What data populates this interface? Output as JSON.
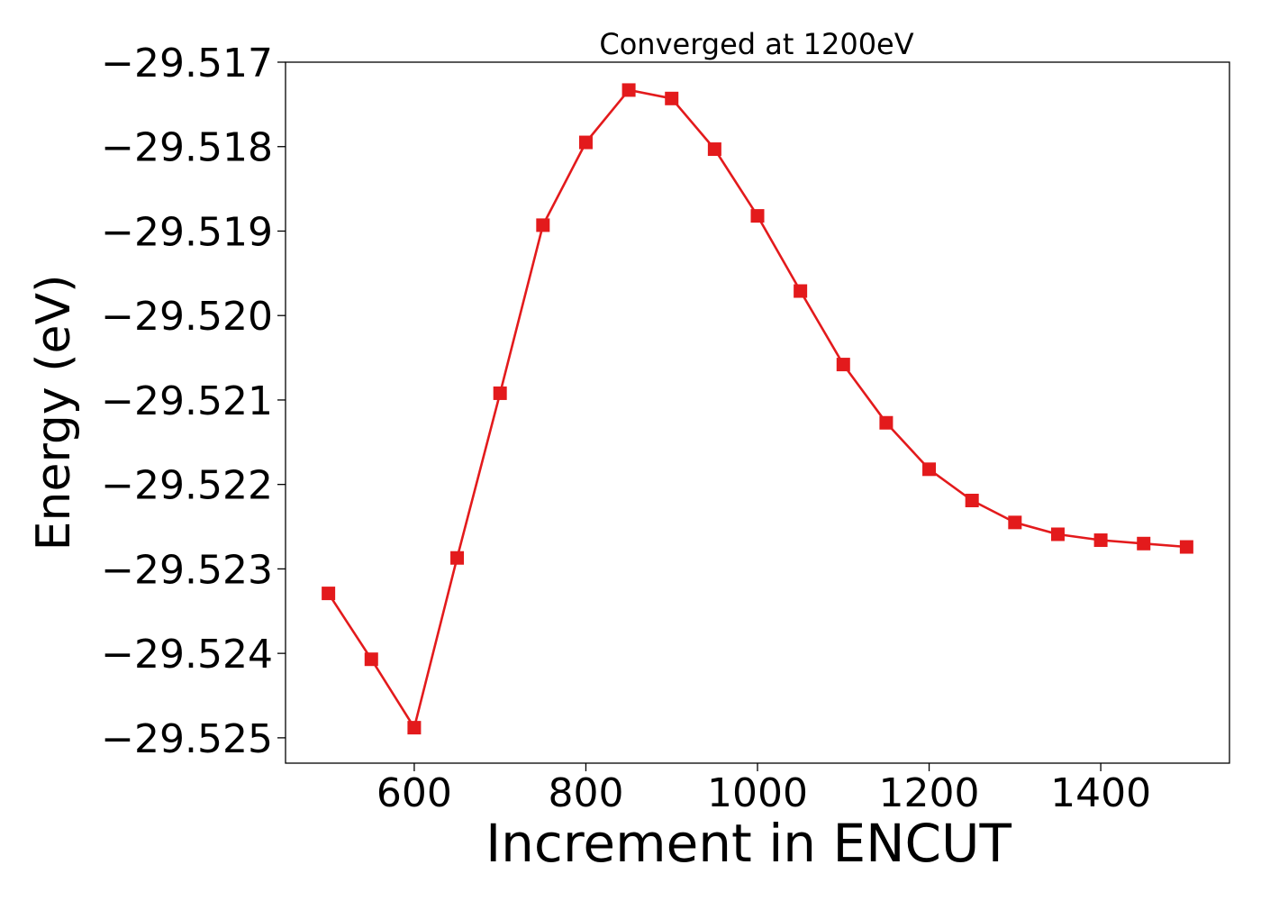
{
  "chart_data": {
    "type": "line",
    "title": "Converged at 1200eV",
    "xlabel": "Increment in ENCUT",
    "ylabel": "Energy (eV)",
    "xlim": [
      450,
      1550
    ],
    "ylim": [
      -29.5253,
      -29.517
    ],
    "x_ticks": [
      600,
      800,
      1000,
      1200,
      1400
    ],
    "x_tick_labels": [
      "600",
      "800",
      "1000",
      "1200",
      "1400"
    ],
    "y_ticks": [
      -29.517,
      -29.518,
      -29.519,
      -29.52,
      -29.521,
      -29.522,
      -29.523,
      -29.524,
      -29.525
    ],
    "y_tick_labels": [
      "−29.517",
      "−29.518",
      "−29.519",
      "−29.520",
      "−29.521",
      "−29.522",
      "−29.523",
      "−29.524",
      "−29.525"
    ],
    "grid": false,
    "series": [
      {
        "color": "#e31a1c",
        "marker": "square",
        "x": [
          500,
          550,
          600,
          650,
          700,
          750,
          800,
          850,
          900,
          950,
          1000,
          1050,
          1100,
          1150,
          1200,
          1250,
          1300,
          1350,
          1400,
          1450,
          1500
        ],
        "y": [
          -29.52329,
          -29.52407,
          -29.52488,
          -29.52287,
          -29.52092,
          -29.51893,
          -29.51795,
          -29.51733,
          -29.51743,
          -29.51803,
          -29.51882,
          -29.51971,
          -29.52058,
          -29.52127,
          -29.52182,
          -29.52219,
          -29.52245,
          -29.52259,
          -29.52266,
          -29.5227,
          -29.52274
        ]
      }
    ]
  }
}
